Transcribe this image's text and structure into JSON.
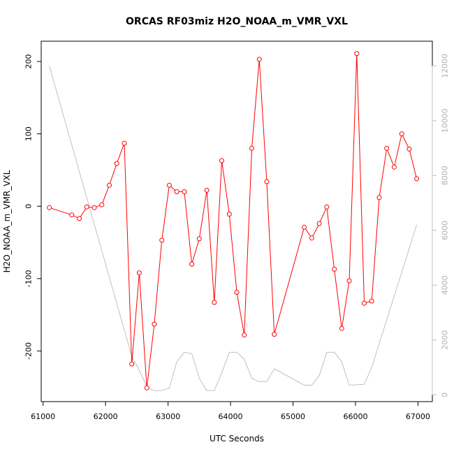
{
  "chart_data": {
    "type": "line",
    "title": "ORCAS RF03miz H2O_NOAA_m_VMR_VXL",
    "xlabel": "UTC Seconds",
    "ylabel": "H2O_NOAA_m_VMR_VXL",
    "xlim": [
      60970,
      67230
    ],
    "ylim": [
      -270,
      228
    ],
    "y2lim": [
      -250,
      12900
    ],
    "x_ticks": [
      61000,
      62000,
      63000,
      64000,
      65000,
      66000,
      67000
    ],
    "y_ticks": [
      -200,
      -100,
      0,
      100,
      200
    ],
    "y2_ticks": [
      0,
      2000,
      4000,
      6000,
      8000,
      10000,
      12000
    ],
    "grid": false,
    "legend": "none",
    "colors": {
      "primary": "#ff0000",
      "secondary": "#c0c0c0",
      "axis": "#000000"
    },
    "series": [
      {
        "axis": "left",
        "style": "line-with-circles",
        "x": [
          61100,
          61460,
          61580,
          61700,
          61820,
          61940,
          62060,
          62180,
          62300,
          62420,
          62540,
          62660,
          62780,
          62900,
          63020,
          63140,
          63260,
          63380,
          63500,
          63620,
          63740,
          63860,
          63980,
          64100,
          64220,
          64340,
          64460,
          64580,
          64700,
          65180,
          65300,
          65420,
          65540,
          65660,
          65780,
          65900,
          66020,
          66140,
          66260,
          66380,
          66500,
          66620,
          66740,
          66860,
          66980
        ],
        "y": [
          -2,
          -12,
          -17,
          -1,
          -2,
          2,
          29,
          59,
          87,
          -218,
          -92,
          -251,
          -163,
          -47,
          29,
          20,
          20,
          -80,
          -45,
          22,
          -133,
          63,
          -11,
          -119,
          -178,
          80,
          203,
          34,
          -177,
          -29,
          -44,
          -24,
          -1,
          -87,
          -169,
          -103,
          211,
          -134,
          -131,
          12,
          80,
          54,
          100,
          79,
          38
        ]
      },
      {
        "axis": "right",
        "style": "line",
        "x": [
          61100,
          62420,
          62540,
          62660,
          62780,
          62900,
          63020,
          63140,
          63260,
          63380,
          63500,
          63620,
          63740,
          63860,
          63980,
          64100,
          64220,
          64340,
          64460,
          64580,
          64700,
          65180,
          65300,
          65420,
          65540,
          65660,
          65780,
          65900,
          66140,
          66260,
          66980
        ],
        "y": [
          12000,
          1400,
          900,
          300,
          150,
          150,
          250,
          1200,
          1550,
          1500,
          600,
          150,
          150,
          800,
          1550,
          1550,
          1300,
          600,
          480,
          480,
          950,
          350,
          350,
          700,
          1550,
          1550,
          1200,
          350,
          380,
          1000,
          6200
        ]
      }
    ]
  }
}
